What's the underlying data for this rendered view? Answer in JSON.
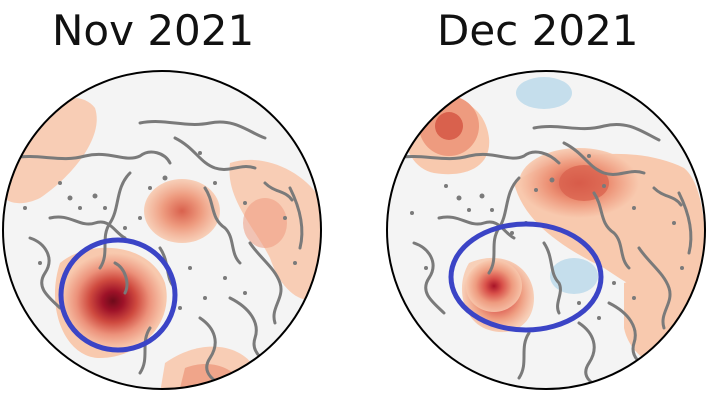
{
  "panels": [
    {
      "title": "Nov 2021"
    },
    {
      "title": "Dec 2021"
    }
  ],
  "colors": {
    "background": "#f4f4f4",
    "coastline": "#7a7a7a",
    "warm_light": "#f8c9ae",
    "warm_mid": "#ee9b7f",
    "warm_strong": "#d9614d",
    "warm_dark": "#b5192c",
    "warm_deepest": "#7a0a1c",
    "cool_light": "#c5deec",
    "highlight_ellipse": "#3b44c6",
    "disk_outline": "#000000"
  }
}
